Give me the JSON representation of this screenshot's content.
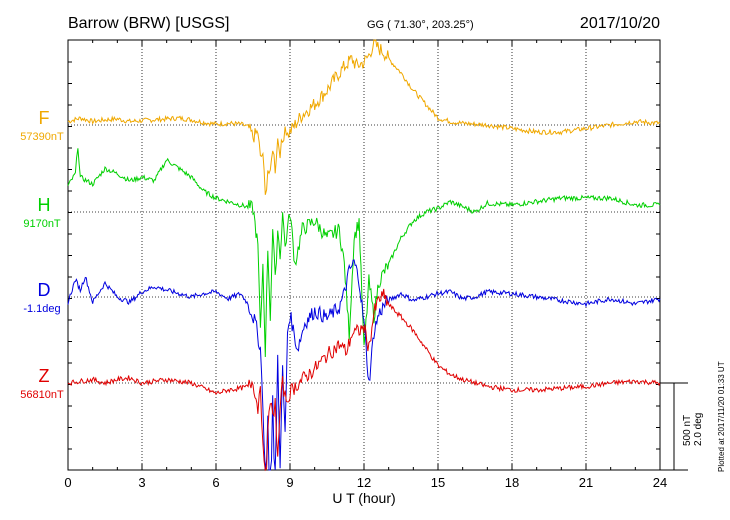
{
  "header": {
    "station": "Barrow (BRW)  [USGS]",
    "coords": "GG ( 71.30°, 203.25°)",
    "date": "2017/10/20"
  },
  "footer": {
    "plotted": "Plotted at 2017/11/20 01:33 UT",
    "scale_nt": "500 nT",
    "scale_deg": "2.0 deg"
  },
  "chart_data": {
    "type": "line",
    "xlabel": "U T (hour)",
    "xlim": [
      0,
      24
    ],
    "xticks": [
      0,
      3,
      6,
      9,
      12,
      15,
      18,
      21,
      24
    ],
    "xtick_labels": [
      "0",
      "3",
      "6",
      "9",
      "12",
      "15",
      "18",
      "21",
      "24"
    ],
    "ylim": [
      -1200,
      1400
    ],
    "grid": true,
    "series": [
      {
        "name": "F",
        "baseline_label": "57390nT",
        "color": "#f0a800",
        "x": [
          0,
          0.5,
          1,
          1.5,
          2,
          2.5,
          3,
          3.5,
          4,
          4.5,
          5,
          5.5,
          6,
          6.5,
          7,
          7.3,
          7.5,
          7.7,
          7.8,
          7.9,
          8,
          8.1,
          8.2,
          8.3,
          8.4,
          8.5,
          8.6,
          8.7,
          8.8,
          8.9,
          9,
          9.5,
          10,
          10.5,
          11,
          11.3,
          11.5,
          11.7,
          12,
          12.2,
          12.4,
          12.6,
          12.8,
          13,
          13.5,
          14,
          14.5,
          15,
          15.5,
          16,
          17,
          18,
          19,
          20,
          21,
          22,
          23,
          24
        ],
        "y": [
          20,
          40,
          20,
          30,
          35,
          20,
          25,
          30,
          35,
          40,
          30,
          15,
          5,
          10,
          5,
          -10,
          -70,
          -40,
          -200,
          -160,
          -420,
          -250,
          -300,
          -120,
          -250,
          -80,
          -150,
          -100,
          0,
          -60,
          -40,
          60,
          120,
          200,
          300,
          350,
          380,
          340,
          360,
          400,
          470,
          440,
          420,
          380,
          300,
          200,
          120,
          40,
          20,
          10,
          0,
          -20,
          -40,
          -40,
          -20,
          0,
          20,
          10
        ]
      },
      {
        "name": "H",
        "baseline_label": "9170nT",
        "color": "#00d000",
        "x": [
          0,
          0.3,
          0.4,
          0.5,
          1,
          1.5,
          2,
          2.5,
          3,
          3.5,
          4,
          4.5,
          5,
          5.5,
          6,
          6.5,
          7,
          7.5,
          7.7,
          7.8,
          7.9,
          8,
          8.1,
          8.2,
          8.3,
          8.4,
          8.5,
          8.6,
          8.7,
          8.8,
          8.9,
          9,
          9.2,
          9.5,
          10,
          10.5,
          11,
          11.2,
          11.4,
          11.6,
          11.8,
          12,
          12.2,
          12.4,
          12.6,
          13,
          13.5,
          14,
          14.5,
          15,
          15.5,
          16,
          16.5,
          17,
          18,
          19,
          20,
          21,
          22,
          23,
          24
        ],
        "y": [
          150,
          220,
          380,
          200,
          160,
          250,
          220,
          180,
          200,
          180,
          300,
          250,
          200,
          120,
          80,
          60,
          40,
          20,
          -200,
          -700,
          -300,
          -800,
          -200,
          -600,
          -100,
          -400,
          -100,
          -250,
          0,
          -200,
          -100,
          0,
          -300,
          -100,
          -50,
          -150,
          -100,
          -300,
          -700,
          -150,
          -50,
          -800,
          -400,
          -600,
          -400,
          -300,
          -150,
          -50,
          0,
          20,
          60,
          30,
          0,
          50,
          40,
          60,
          80,
          80,
          80,
          40,
          40
        ]
      },
      {
        "name": "D",
        "baseline_label": "-1.1deg",
        "color": "#0000e0",
        "x": [
          0,
          0.3,
          0.5,
          0.7,
          1,
          1.5,
          2,
          2.5,
          3,
          3.5,
          4,
          4.5,
          5,
          5.5,
          6,
          6.5,
          7,
          7.3,
          7.6,
          7.8,
          7.9,
          8,
          8.1,
          8.2,
          8.3,
          8.4,
          8.5,
          8.6,
          8.7,
          8.8,
          8.9,
          9,
          9.3,
          9.6,
          10,
          10.5,
          11,
          11.2,
          11.4,
          11.6,
          11.8,
          12,
          12.2,
          12.4,
          12.6,
          12.8,
          13,
          13.5,
          14,
          14.5,
          15,
          15.5,
          16,
          16.5,
          17,
          18,
          19,
          20,
          21,
          22,
          23,
          24
        ],
        "y": [
          -30,
          100,
          40,
          120,
          -30,
          80,
          0,
          -30,
          30,
          60,
          40,
          20,
          0,
          20,
          30,
          -10,
          20,
          -40,
          -150,
          -300,
          -600,
          -1100,
          -700,
          -1300,
          -600,
          -1200,
          -300,
          -1000,
          -400,
          -800,
          -200,
          -100,
          -300,
          -150,
          -80,
          -120,
          -60,
          20,
          150,
          200,
          100,
          -150,
          -500,
          -200,
          -100,
          -50,
          -20,
          20,
          -20,
          0,
          20,
          30,
          -10,
          0,
          30,
          20,
          0,
          -20,
          -40,
          -10,
          -40,
          -10
        ]
      },
      {
        "name": "Z",
        "baseline_label": "56810nT",
        "color": "#e00000",
        "x": [
          0,
          0.5,
          1,
          1.5,
          2,
          2.5,
          3,
          3.5,
          4,
          4.5,
          5,
          5.5,
          6,
          6.5,
          7,
          7.3,
          7.5,
          7.7,
          7.8,
          7.9,
          8,
          8.1,
          8.2,
          8.3,
          8.4,
          8.5,
          8.6,
          8.7,
          8.8,
          8.9,
          9,
          9.5,
          10,
          10.5,
          11,
          11.3,
          11.5,
          11.8,
          12,
          12.2,
          12.4,
          12.6,
          12.8,
          13,
          13.5,
          14,
          14.5,
          15,
          15.5,
          16,
          17,
          18,
          19,
          20,
          21,
          22,
          23,
          24
        ],
        "y": [
          0,
          10,
          20,
          0,
          20,
          30,
          0,
          10,
          20,
          10,
          0,
          -30,
          -60,
          -40,
          -30,
          -20,
          10,
          -150,
          20,
          -380,
          -600,
          -300,
          -100,
          -200,
          -100,
          -450,
          -150,
          0,
          -80,
          -100,
          -50,
          20,
          80,
          160,
          220,
          180,
          280,
          300,
          320,
          200,
          400,
          480,
          500,
          450,
          380,
          300,
          200,
          100,
          50,
          20,
          -20,
          -40,
          -40,
          -30,
          -20,
          0,
          10,
          0
        ]
      }
    ]
  }
}
